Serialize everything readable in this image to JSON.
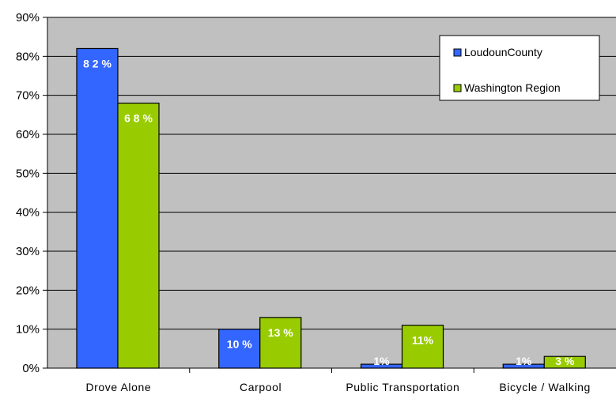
{
  "chart_data": {
    "type": "bar",
    "categories": [
      "Drove Alone",
      "Carpool",
      "Public Transportation",
      "Bicycle / Walking"
    ],
    "series": [
      {
        "name": "LoudounCounty",
        "color": "#3366ff",
        "values": [
          82,
          10,
          1,
          1
        ],
        "labels": [
          "8 2 %",
          "10 %",
          "1%",
          "1%"
        ]
      },
      {
        "name": "Washington Region",
        "color": "#99cc00",
        "values": [
          68,
          13,
          11,
          3
        ],
        "labels": [
          "6 8 %",
          "13 %",
          "11%",
          "3 %"
        ]
      }
    ],
    "title": "",
    "xlabel": "",
    "ylabel": "",
    "ylim": [
      0,
      90
    ],
    "yticks": [
      "0%",
      "10%",
      "20%",
      "30%",
      "40%",
      "50%",
      "60%",
      "70%",
      "80%",
      "90%"
    ],
    "grid": true,
    "plot_background": "#c0c0c0",
    "legend_position": "top-right"
  }
}
